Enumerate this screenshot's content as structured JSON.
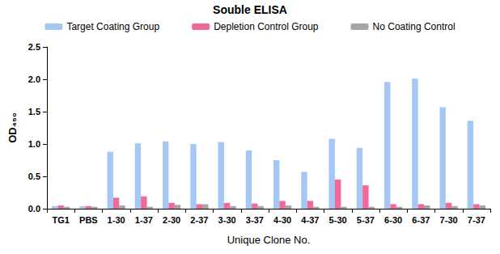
{
  "chart_data": {
    "type": "bar",
    "title": "Souble ELISA",
    "x_label": "Unique Clone No.",
    "y_label": "OD₄₅₀",
    "categories": [
      "TG1",
      "PBS",
      "1-30",
      "1-37",
      "2-30",
      "2-37",
      "3-30",
      "3-37",
      "4-30",
      "4-37",
      "5-30",
      "5-37",
      "6-30",
      "6-37",
      "7-30",
      "7-37"
    ],
    "series": [
      {
        "name": "Target Coating Group",
        "color": "#a4c8f2",
        "values": [
          0.04,
          0.04,
          0.88,
          1.01,
          1.04,
          1.0,
          1.03,
          0.9,
          0.75,
          0.57,
          1.08,
          0.94,
          1.96,
          2.01,
          1.57,
          1.36
        ]
      },
      {
        "name": "Depletion Control Group",
        "color": "#f0689c",
        "values": [
          0.05,
          0.04,
          0.17,
          0.19,
          0.09,
          0.07,
          0.09,
          0.08,
          0.12,
          0.12,
          0.45,
          0.36,
          0.07,
          0.07,
          0.09,
          0.07
        ]
      },
      {
        "name": "No Coating Control",
        "color": "#a6a6a6",
        "values": [
          0.03,
          0.03,
          0.05,
          0.03,
          0.06,
          0.07,
          0.04,
          0.04,
          0.05,
          0.03,
          0.03,
          0.03,
          0.03,
          0.05,
          0.04,
          0.05
        ]
      }
    ],
    "ylim": [
      0,
      2.5
    ],
    "yticks": [
      {
        "value": 0,
        "label": "0.0"
      },
      0.5,
      {
        "value": 1,
        "label": "1.0"
      },
      1.5,
      {
        "value": 2,
        "label": "2.0"
      },
      2.5
    ],
    "grid": false,
    "legend": "top"
  }
}
